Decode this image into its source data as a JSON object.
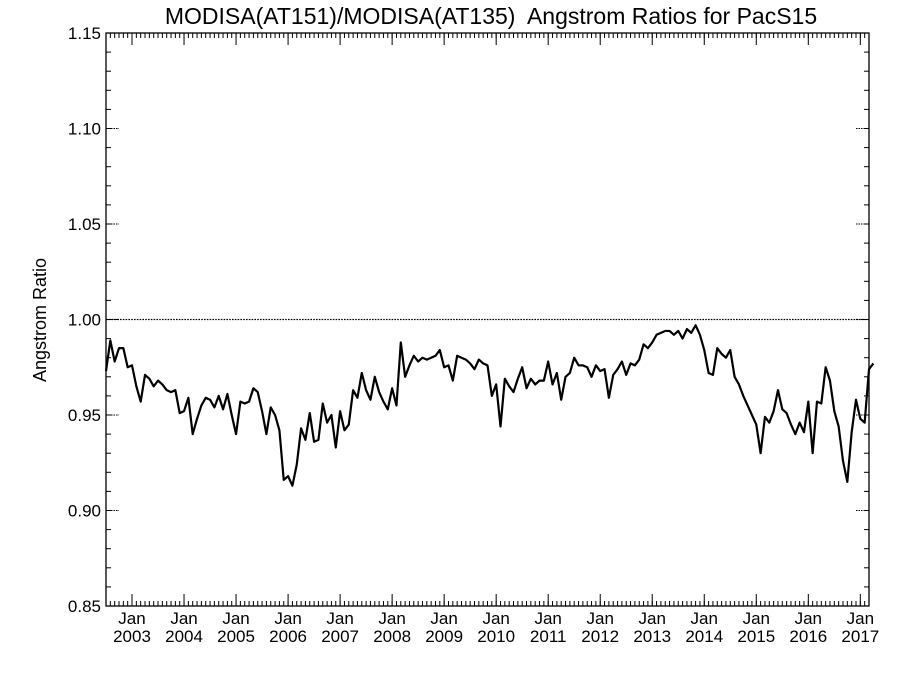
{
  "chart_data": {
    "type": "line",
    "title": "MODISA(AT151)/MODISA(AT135)  Angstrom Ratios for PacS15",
    "xlabel": "",
    "ylabel": "Angstrom Ratio",
    "ylim": [
      0.85,
      1.15
    ],
    "xlim": [
      "2002-07",
      "2017-03"
    ],
    "yticks": [
      "0.85",
      "0.90",
      "0.95",
      "1.00",
      "1.05",
      "1.10",
      "1.15"
    ],
    "xticks": [
      {
        "month": "Jan",
        "year": "2003"
      },
      {
        "month": "Jan",
        "year": "2004"
      },
      {
        "month": "Jan",
        "year": "2005"
      },
      {
        "month": "Jan",
        "year": "2006"
      },
      {
        "month": "Jan",
        "year": "2007"
      },
      {
        "month": "Jan",
        "year": "2008"
      },
      {
        "month": "Jan",
        "year": "2009"
      },
      {
        "month": "Jan",
        "year": "2010"
      },
      {
        "month": "Jan",
        "year": "2011"
      },
      {
        "month": "Jan",
        "year": "2012"
      },
      {
        "month": "Jan",
        "year": "2013"
      },
      {
        "month": "Jan",
        "year": "2014"
      },
      {
        "month": "Jan",
        "year": "2015"
      },
      {
        "month": "Jan",
        "year": "2016"
      },
      {
        "month": "Jan",
        "year": "2017"
      }
    ],
    "reference_line": 1.0,
    "grid": false,
    "line_color": "#000000",
    "start": "2002-07",
    "step": "monthly",
    "values": [
      0.973,
      0.989,
      0.978,
      0.985,
      0.985,
      0.975,
      0.976,
      0.965,
      0.957,
      0.971,
      0.969,
      0.965,
      0.968,
      0.966,
      0.963,
      0.962,
      0.963,
      0.951,
      0.952,
      0.959,
      0.94,
      0.948,
      0.955,
      0.959,
      0.958,
      0.954,
      0.96,
      0.953,
      0.961,
      0.95,
      0.94,
      0.957,
      0.956,
      0.957,
      0.964,
      0.962,
      0.952,
      0.94,
      0.954,
      0.95,
      0.942,
      0.916,
      0.918,
      0.913,
      0.924,
      0.943,
      0.937,
      0.951,
      0.936,
      0.937,
      0.956,
      0.946,
      0.95,
      0.933,
      0.952,
      0.942,
      0.945,
      0.963,
      0.959,
      0.972,
      0.963,
      0.958,
      0.97,
      0.962,
      0.957,
      0.953,
      0.964,
      0.955,
      0.988,
      0.97,
      0.976,
      0.981,
      0.978,
      0.98,
      0.979,
      0.98,
      0.981,
      0.984,
      0.975,
      0.976,
      0.968,
      0.981,
      0.98,
      0.979,
      0.977,
      0.974,
      0.979,
      0.977,
      0.976,
      0.96,
      0.966,
      0.944,
      0.969,
      0.965,
      0.962,
      0.969,
      0.975,
      0.964,
      0.969,
      0.966,
      0.968,
      0.968,
      0.978,
      0.966,
      0.972,
      0.958,
      0.97,
      0.972,
      0.98,
      0.976,
      0.976,
      0.975,
      0.97,
      0.976,
      0.973,
      0.974,
      0.959,
      0.971,
      0.974,
      0.978,
      0.971,
      0.977,
      0.976,
      0.979,
      0.987,
      0.985,
      0.988,
      0.992,
      0.993,
      0.994,
      0.994,
      0.992,
      0.994,
      0.99,
      0.995,
      0.993,
      0.997,
      0.992,
      0.984,
      0.972,
      0.971,
      0.985,
      0.982,
      0.98,
      0.984,
      0.97,
      0.966,
      0.96,
      0.955,
      0.95,
      0.945,
      0.93,
      0.949,
      0.946,
      0.952,
      0.963,
      0.953,
      0.951,
      0.945,
      0.94,
      0.946,
      0.941,
      0.957,
      0.93,
      0.957,
      0.956,
      0.975,
      0.968,
      0.952,
      0.944,
      0.926,
      0.915,
      0.941,
      0.958,
      0.948,
      0.946,
      0.974,
      0.977
    ]
  }
}
